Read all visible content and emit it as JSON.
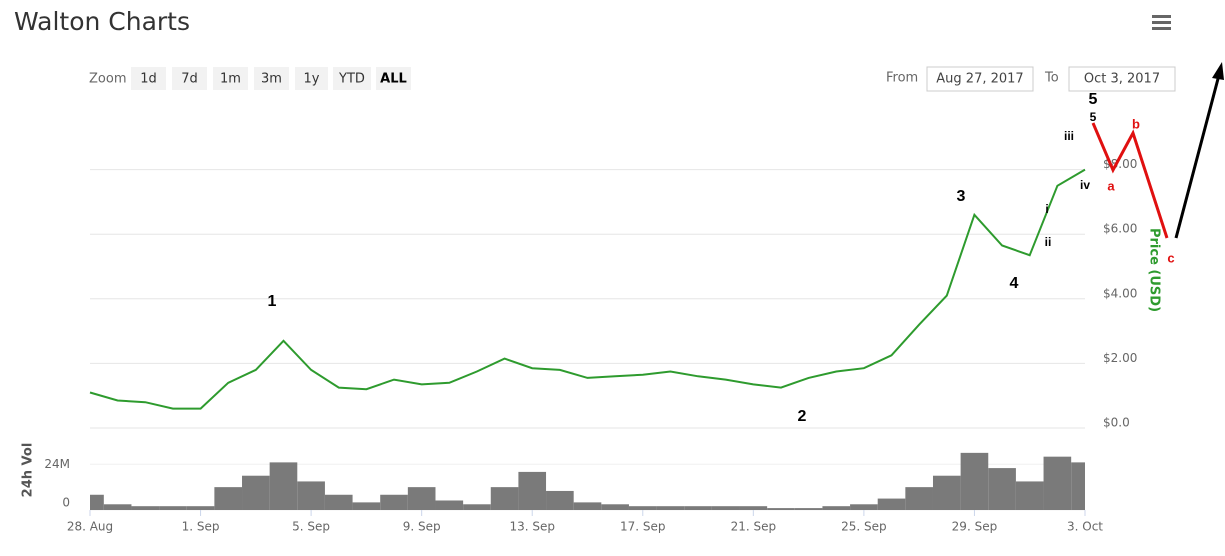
{
  "header": {
    "title": "Walton Charts"
  },
  "toolbar": {
    "zoom_label": "Zoom",
    "zoom_buttons": [
      "1d",
      "7d",
      "1m",
      "3m",
      "1y",
      "YTD",
      "ALL"
    ],
    "from_label": "From",
    "from_date": "Aug 27, 2017",
    "to_label": "To",
    "to_date": "Oct 3, 2017"
  },
  "chart_data": [
    {
      "type": "line",
      "y_label": "Price (USD)",
      "color": "#2e9b2e",
      "x": [
        "2017-08-28",
        "2017-08-29",
        "2017-08-30",
        "2017-08-31",
        "2017-09-01",
        "2017-09-02",
        "2017-09-03",
        "2017-09-04",
        "2017-09-05",
        "2017-09-06",
        "2017-09-07",
        "2017-09-08",
        "2017-09-09",
        "2017-09-10",
        "2017-09-11",
        "2017-09-12",
        "2017-09-13",
        "2017-09-14",
        "2017-09-15",
        "2017-09-16",
        "2017-09-17",
        "2017-09-18",
        "2017-09-19",
        "2017-09-20",
        "2017-09-21",
        "2017-09-22",
        "2017-09-23",
        "2017-09-24",
        "2017-09-25",
        "2017-09-26",
        "2017-09-27",
        "2017-09-28",
        "2017-09-29",
        "2017-09-30",
        "2017-10-01",
        "2017-10-02",
        "2017-10-03"
      ],
      "values": [
        1.1,
        0.85,
        0.8,
        0.6,
        0.6,
        1.4,
        1.8,
        2.7,
        1.8,
        1.25,
        1.2,
        1.5,
        1.35,
        1.4,
        1.75,
        2.15,
        1.85,
        1.8,
        1.55,
        1.6,
        1.65,
        1.75,
        1.6,
        1.5,
        1.35,
        1.25,
        1.55,
        1.75,
        1.85,
        2.25,
        3.2,
        4.1,
        6.6,
        5.65,
        5.35,
        7.5,
        8.0
      ],
      "xlim": [
        "2017-08-28",
        "2017-10-03"
      ],
      "ylim": [
        0,
        10
      ],
      "yticks": [
        {
          "value": 0,
          "label": "$0.0"
        },
        {
          "value": 2,
          "label": "$2.00"
        },
        {
          "value": 4,
          "label": "$4.00"
        },
        {
          "value": 6,
          "label": "$6.00"
        },
        {
          "value": 8,
          "label": "$8.00"
        }
      ],
      "grid": true,
      "annotations": [
        "1",
        "2",
        "3",
        "4",
        "5",
        "5",
        "i",
        "ii",
        "iii",
        "iv",
        "a",
        "b",
        "c"
      ]
    },
    {
      "type": "bar",
      "y_label": "24h Vol",
      "color": "#7a7a7a",
      "x": [
        "2017-08-28",
        "2017-08-29",
        "2017-08-30",
        "2017-08-31",
        "2017-09-01",
        "2017-09-02",
        "2017-09-03",
        "2017-09-04",
        "2017-09-05",
        "2017-09-06",
        "2017-09-07",
        "2017-09-08",
        "2017-09-09",
        "2017-09-10",
        "2017-09-11",
        "2017-09-12",
        "2017-09-13",
        "2017-09-14",
        "2017-09-15",
        "2017-09-16",
        "2017-09-17",
        "2017-09-18",
        "2017-09-19",
        "2017-09-20",
        "2017-09-21",
        "2017-09-22",
        "2017-09-23",
        "2017-09-24",
        "2017-09-25",
        "2017-09-26",
        "2017-09-27",
        "2017-09-28",
        "2017-09-29",
        "2017-09-30",
        "2017-10-01",
        "2017-10-02",
        "2017-10-03"
      ],
      "values": [
        8000000,
        3000000,
        2000000,
        2000000,
        2000000,
        12000000,
        18000000,
        25000000,
        15000000,
        8000000,
        4000000,
        8000000,
        12000000,
        5000000,
        3000000,
        12000000,
        20000000,
        10000000,
        4000000,
        3000000,
        2000000,
        2000000,
        2000000,
        2000000,
        2000000,
        1000000,
        1000000,
        2000000,
        3000000,
        6000000,
        12000000,
        18000000,
        30000000,
        22000000,
        15000000,
        28000000,
        25000000
      ],
      "xlim": [
        "2017-08-28",
        "2017-10-03"
      ],
      "ylim": [
        0,
        42000000
      ],
      "yticks": [
        0,
        {
          "value": 24000000,
          "label": "24M"
        }
      ],
      "xticks": [
        {
          "value": "2017-08-28",
          "label": "28. Aug"
        },
        {
          "value": "2017-09-01",
          "label": "1. Sep"
        },
        {
          "value": "2017-09-05",
          "label": "5. Sep"
        },
        {
          "value": "2017-09-09",
          "label": "9. Sep"
        },
        {
          "value": "2017-09-13",
          "label": "13. Sep"
        },
        {
          "value": "2017-09-17",
          "label": "17. Sep"
        },
        {
          "value": "2017-09-21",
          "label": "21. Sep"
        },
        {
          "value": "2017-09-25",
          "label": "25. Sep"
        },
        {
          "value": "2017-09-29",
          "label": "29. Sep"
        },
        {
          "value": "2017-10-03",
          "label": "3. Oct"
        }
      ]
    }
  ]
}
